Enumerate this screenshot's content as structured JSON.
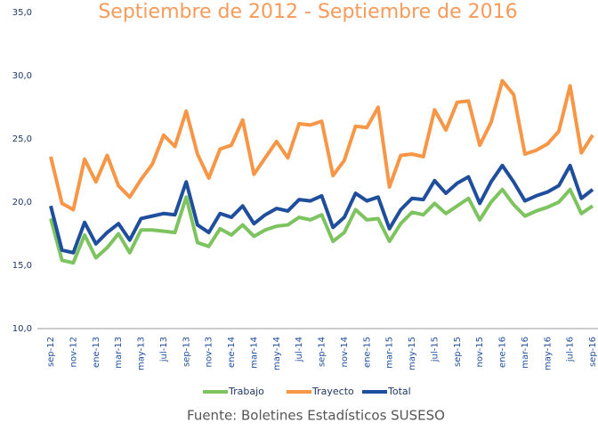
{
  "chart_data": {
    "type": "line",
    "title": "Septiembre de 2012 - Septiembre de 2016",
    "source": "Fuente: Boletines Estadísticos SUSESO",
    "categories": [
      "sep-12",
      null,
      "nov-12",
      null,
      "ene-13",
      null,
      "mar-13",
      null,
      "may-13",
      null,
      "jul-13",
      null,
      "sep-13",
      null,
      "nov-13",
      null,
      "ene-14",
      null,
      "mar-14",
      null,
      "may-14",
      null,
      "jul-14",
      null,
      "sep-14",
      null,
      "nov-14",
      null,
      "ene-15",
      null,
      "mar-15",
      null,
      "may-15",
      null,
      "jul-15",
      null,
      "sep-15",
      null,
      "nov-15",
      null,
      "ene-16",
      null,
      "mar-16",
      null,
      "may-16",
      null,
      "jul-16",
      null,
      "sep-16"
    ],
    "series": [
      {
        "name": "Trabajo",
        "color": "#7dc460",
        "values": [
          18.7,
          15.4,
          15.2,
          17.4,
          15.6,
          16.4,
          17.5,
          16.0,
          17.8,
          17.8,
          17.7,
          17.6,
          20.4,
          16.8,
          16.5,
          17.9,
          17.4,
          18.2,
          17.3,
          17.8,
          18.1,
          18.2,
          18.8,
          18.6,
          19.0,
          16.9,
          17.6,
          19.4,
          18.6,
          18.7,
          16.9,
          18.3,
          19.2,
          19.0,
          19.9,
          19.1,
          19.7,
          20.3,
          18.6,
          20.0,
          21.0,
          19.8,
          18.9,
          19.3,
          19.6,
          20.0,
          21.0,
          19.1,
          19.7
        ]
      },
      {
        "name": "Trayecto",
        "color": "#f79646",
        "values": [
          23.6,
          19.9,
          19.4,
          23.4,
          21.6,
          23.7,
          21.3,
          20.4,
          21.8,
          23.0,
          25.3,
          24.4,
          27.2,
          23.8,
          21.9,
          24.2,
          24.5,
          26.5,
          22.2,
          23.5,
          24.8,
          23.5,
          26.2,
          26.1,
          26.4,
          22.1,
          23.3,
          26.0,
          25.9,
          27.5,
          21.2,
          23.7,
          23.8,
          23.6,
          27.3,
          25.7,
          27.9,
          28.0,
          24.5,
          26.3,
          29.6,
          28.5,
          23.8,
          24.1,
          24.6,
          25.6,
          29.2,
          23.9,
          25.3
        ]
      },
      {
        "name": "Total",
        "color": "#1f4e9c",
        "values": [
          19.7,
          16.2,
          16.0,
          18.4,
          16.7,
          17.6,
          18.3,
          17.0,
          18.7,
          18.9,
          19.1,
          19.0,
          21.6,
          18.2,
          17.6,
          19.1,
          18.8,
          19.7,
          18.3,
          19.0,
          19.5,
          19.3,
          20.2,
          20.1,
          20.5,
          18.0,
          18.8,
          20.7,
          20.1,
          20.4,
          17.9,
          19.4,
          20.3,
          20.2,
          21.7,
          20.7,
          21.5,
          22.0,
          19.9,
          21.6,
          22.9,
          21.6,
          20.1,
          20.5,
          20.8,
          21.3,
          22.9,
          20.3,
          21.0
        ]
      }
    ],
    "ylim": [
      10,
      35
    ],
    "yticks": [
      {
        "value": 10,
        "label": "10,0"
      },
      {
        "value": 15,
        "label": "15,0"
      },
      {
        "value": 20,
        "label": "20,0"
      },
      {
        "value": 25,
        "label": "25,0"
      },
      {
        "value": 30,
        "label": "30,0"
      },
      {
        "value": 35,
        "label": "35,0"
      }
    ],
    "legend": "bottom",
    "grid": false
  }
}
